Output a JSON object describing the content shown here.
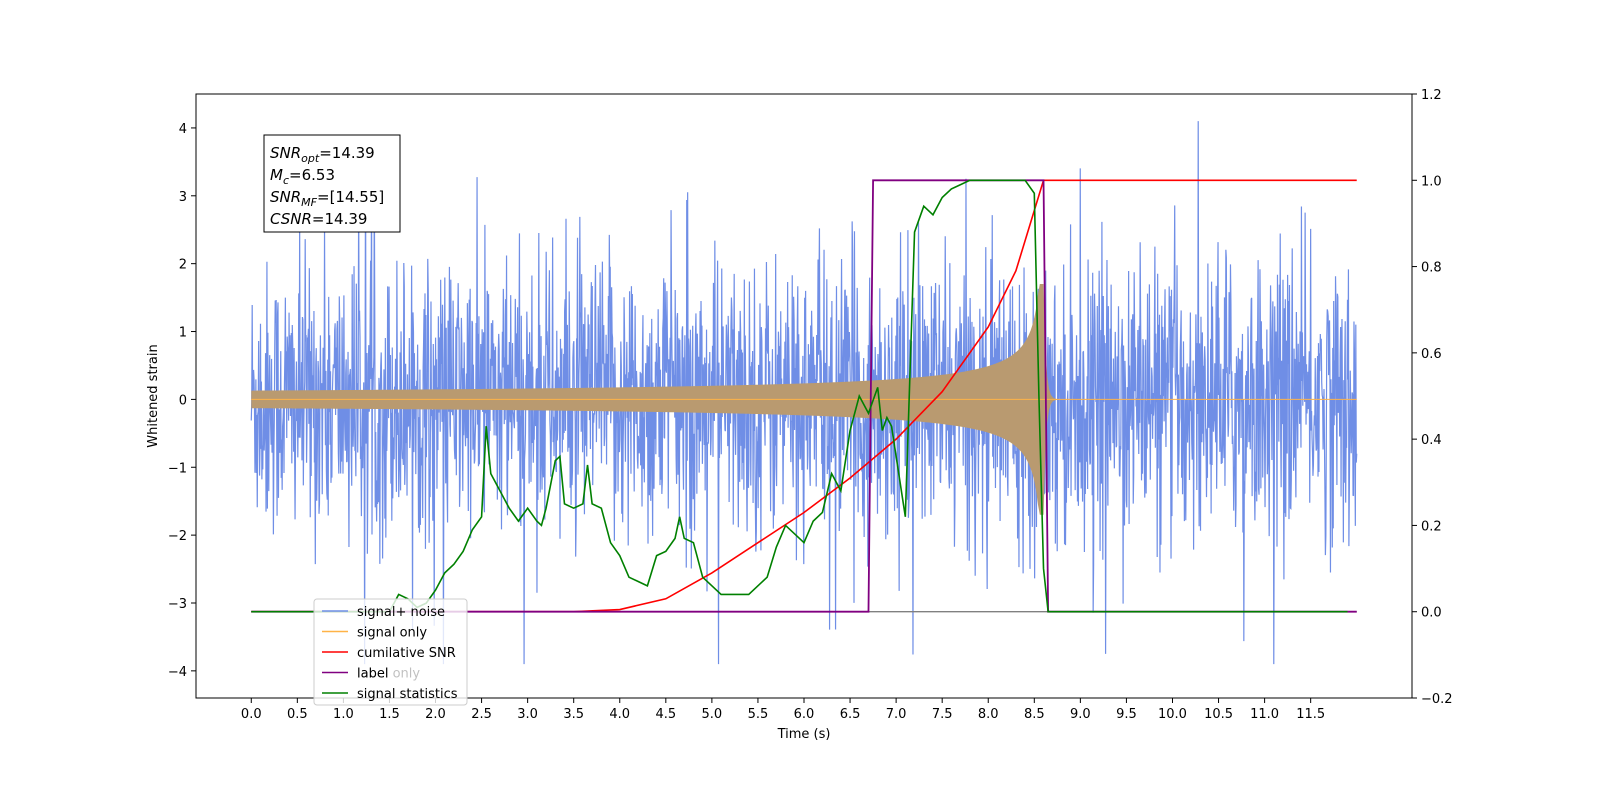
{
  "chart_data": {
    "type": "line",
    "xlabel": "Time (s)",
    "ylabel": "Whitened strain",
    "xlim": [
      -0.6,
      12.6
    ],
    "ylim": [
      -4.4,
      4.5
    ],
    "y2lim": [
      -0.2,
      1.2
    ],
    "xticks": [
      "0.0",
      "0.5",
      "1.0",
      "1.5",
      "2.0",
      "2.5",
      "3.0",
      "3.5",
      "4.0",
      "4.5",
      "5.0",
      "5.5",
      "6.0",
      "6.5",
      "7.0",
      "7.5",
      "8.0",
      "8.5",
      "9.0",
      "9.5",
      "10.0",
      "10.5",
      "11.0",
      "11.5"
    ],
    "yticks": [
      "4",
      "3",
      "2",
      "1",
      "0",
      "−1",
      "−2",
      "−3",
      "−4"
    ],
    "y2ticks": [
      "1.2",
      "1.0",
      "0.8",
      "0.6",
      "0.4",
      "0.2",
      "0.0",
      "−0.2"
    ],
    "grid": false,
    "legend_position": "lower-left",
    "colors": {
      "signal_noise": "#6f8ee6",
      "signal_only": "#ffb347",
      "signal_only_fill": "#b99a70",
      "cumulative_snr": "#ff0000",
      "label": "#800080",
      "label_only": "#808080",
      "signal_statistics": "#008000"
    },
    "series": [
      {
        "name": "signal+ noise",
        "axis": "left",
        "description_range": [
          -3.9,
          4.1
        ]
      },
      {
        "name": "signal only",
        "axis": "left",
        "envelope_peak": 1.7,
        "merger_time": 8.6
      },
      {
        "name": "cumilative SNR",
        "axis": "right",
        "x": [
          0.0,
          3.5,
          4.0,
          4.5,
          5.0,
          5.5,
          6.0,
          6.5,
          7.0,
          7.5,
          8.0,
          8.3,
          8.5,
          8.6,
          8.65,
          12.0
        ],
        "y": [
          0.0,
          0.0,
          0.005,
          0.03,
          0.09,
          0.16,
          0.23,
          0.31,
          0.4,
          0.51,
          0.66,
          0.79,
          0.93,
          1.0,
          1.0,
          1.0
        ]
      },
      {
        "name": "label",
        "axis": "right",
        "x": [
          0.0,
          6.7,
          6.75,
          8.6,
          8.65,
          12.0
        ],
        "y": [
          0.0,
          0.0,
          1.0,
          1.0,
          0.0,
          0.0
        ]
      },
      {
        "name": "label only",
        "axis": "right",
        "x": [
          0.0,
          12.0
        ],
        "y": [
          0.0,
          0.0
        ]
      },
      {
        "name": "signal statistics",
        "axis": "right",
        "x": [
          0.0,
          0.5,
          1.0,
          1.5,
          1.6,
          1.7,
          1.8,
          1.9,
          2.0,
          2.1,
          2.2,
          2.3,
          2.4,
          2.5,
          2.55,
          2.6,
          2.7,
          2.8,
          2.9,
          3.0,
          3.1,
          3.15,
          3.2,
          3.3,
          3.35,
          3.4,
          3.5,
          3.6,
          3.65,
          3.7,
          3.8,
          3.9,
          4.0,
          4.1,
          4.2,
          4.3,
          4.4,
          4.5,
          4.6,
          4.65,
          4.7,
          4.8,
          4.85,
          4.9,
          5.0,
          5.1,
          5.2,
          5.3,
          5.4,
          5.5,
          5.6,
          5.7,
          5.8,
          5.9,
          6.0,
          6.1,
          6.2,
          6.3,
          6.4,
          6.5,
          6.6,
          6.7,
          6.8,
          6.85,
          6.9,
          6.95,
          7.0,
          7.1,
          7.2,
          7.3,
          7.4,
          7.5,
          7.6,
          7.7,
          7.8,
          7.9,
          8.0,
          8.1,
          8.2,
          8.3,
          8.4,
          8.5,
          8.55,
          8.6,
          8.65,
          8.7,
          9.0,
          10.0,
          11.0,
          11.9
        ],
        "y": [
          0.0,
          0.0,
          0.0,
          0.0,
          0.04,
          0.03,
          0.01,
          0.02,
          0.05,
          0.09,
          0.11,
          0.14,
          0.19,
          0.22,
          0.43,
          0.32,
          0.28,
          0.24,
          0.21,
          0.24,
          0.21,
          0.2,
          0.24,
          0.35,
          0.36,
          0.25,
          0.24,
          0.25,
          0.34,
          0.25,
          0.24,
          0.16,
          0.13,
          0.08,
          0.07,
          0.06,
          0.13,
          0.14,
          0.17,
          0.22,
          0.17,
          0.16,
          0.12,
          0.08,
          0.06,
          0.04,
          0.04,
          0.04,
          0.04,
          0.06,
          0.08,
          0.15,
          0.2,
          0.18,
          0.16,
          0.21,
          0.23,
          0.32,
          0.28,
          0.42,
          0.5,
          0.46,
          0.52,
          0.42,
          0.45,
          0.43,
          0.36,
          0.22,
          0.88,
          0.94,
          0.92,
          0.96,
          0.98,
          0.99,
          1.0,
          1.0,
          1.0,
          1.0,
          1.0,
          1.0,
          1.0,
          0.97,
          0.5,
          0.1,
          0.0,
          0.0,
          0.0,
          0.0,
          0.0,
          0.0
        ]
      }
    ],
    "annotation": {
      "lines": [
        {
          "base": "SNR",
          "sub": "opt",
          "rest": "=14.39"
        },
        {
          "base": "M",
          "sub": "c",
          "rest": "=6.53"
        },
        {
          "base": "SNR",
          "sub": "MF",
          "rest": "=[14.55]"
        },
        {
          "base": "CSNR",
          "sub": "",
          "rest": "=14.39"
        }
      ]
    }
  }
}
